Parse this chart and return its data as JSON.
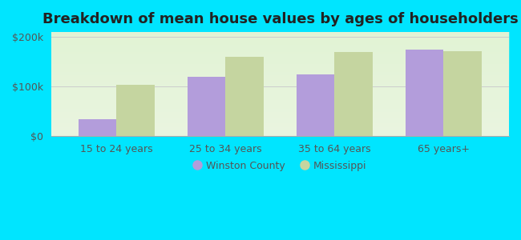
{
  "title": "Breakdown of mean house values by ages of householders",
  "categories": [
    "15 to 24 years",
    "25 to 34 years",
    "35 to 64 years",
    "65 years+"
  ],
  "winston_county": [
    35000,
    120000,
    125000,
    175000
  ],
  "mississippi": [
    103000,
    160000,
    170000,
    172000
  ],
  "bar_color_winston": "#b39ddb",
  "bar_color_mississippi": "#c5d5a0",
  "background_color": "#00e5ff",
  "ylim": [
    0,
    210000
  ],
  "yticks": [
    0,
    100000,
    200000
  ],
  "ytick_labels": [
    "$0",
    "$100k",
    "$200k"
  ],
  "legend_labels": [
    "Winston County",
    "Mississippi"
  ],
  "legend_colors": [
    "#b39ddb",
    "#c5d5a0"
  ],
  "title_fontsize": 13,
  "tick_fontsize": 9,
  "legend_fontsize": 9,
  "bar_width": 0.35,
  "figure_width": 6.5,
  "figure_height": 3.0,
  "dpi": 100
}
